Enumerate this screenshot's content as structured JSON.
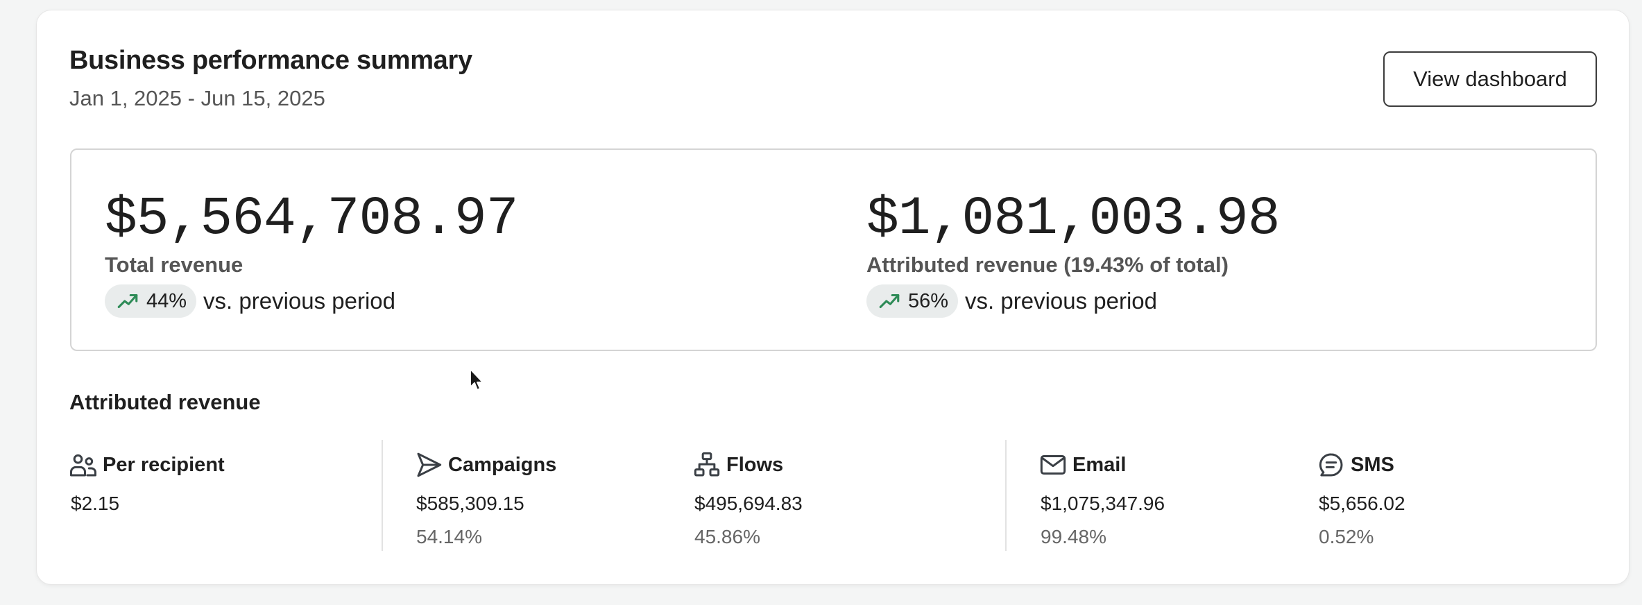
{
  "header": {
    "title": "Business performance summary",
    "date_range": "Jan 1, 2025 - Jun 15, 2025",
    "view_button_label": "View dashboard"
  },
  "metrics": [
    {
      "value": "$5,564,708.97",
      "label": "Total revenue",
      "change": "44%",
      "comparison": "vs. previous period",
      "trend_icon": "trending-up-icon"
    },
    {
      "value": "$1,081,003.98",
      "label": "Attributed revenue (19.43% of total)",
      "change": "56%",
      "comparison": "vs. previous period",
      "trend_icon": "trending-up-icon"
    }
  ],
  "attributed": {
    "section_title": "Attributed revenue",
    "per_recipient": {
      "label": "Per recipient",
      "amount": "$2.15",
      "icon": "users-icon"
    },
    "campaigns": {
      "label": "Campaigns",
      "amount": "$585,309.15",
      "pct": "54.14%",
      "icon": "send-icon"
    },
    "flows": {
      "label": "Flows",
      "amount": "$495,694.83",
      "pct": "45.86%",
      "icon": "flow-icon"
    },
    "email": {
      "label": "Email",
      "amount": "$1,075,347.96",
      "pct": "99.48%",
      "icon": "mail-icon"
    },
    "sms": {
      "label": "SMS",
      "amount": "$5,656.02",
      "pct": "0.52%",
      "icon": "message-icon"
    }
  },
  "colors": {
    "trend_up": "#2e8b57",
    "pill_bg": "#e9ecec",
    "icon_stroke": "#3a3f45"
  }
}
